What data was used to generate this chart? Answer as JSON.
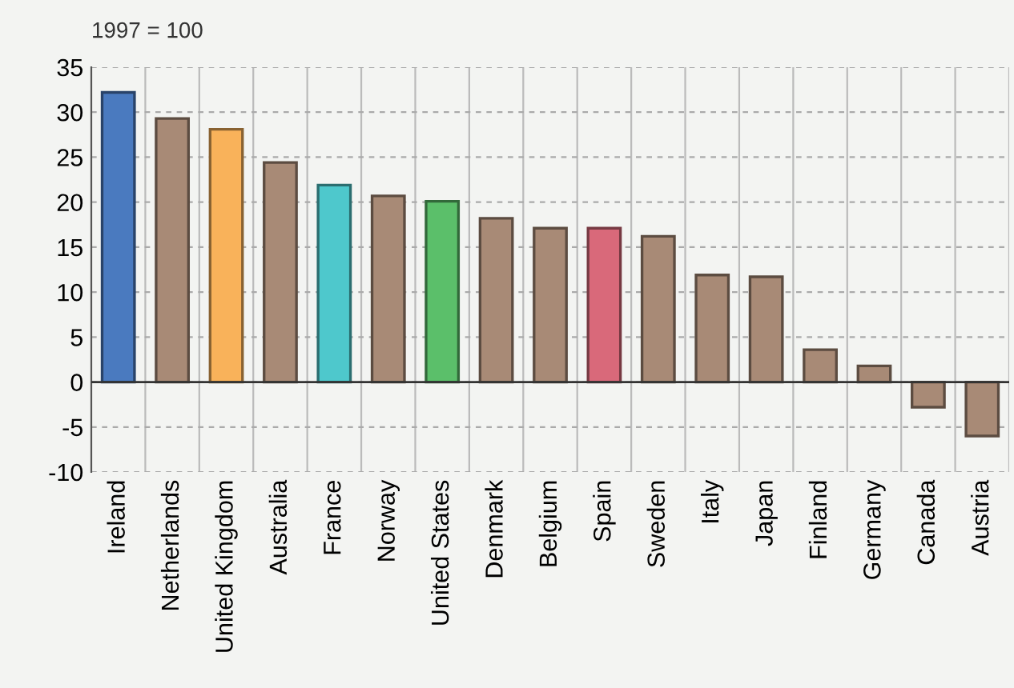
{
  "chart_data": {
    "type": "bar",
    "annotations": [
      "1997 = 100"
    ],
    "categories": [
      "Ireland",
      "Netherlands",
      "United Kingdom",
      "Australia",
      "France",
      "Norway",
      "United States",
      "Denmark",
      "Belgium",
      "Spain",
      "Sweden",
      "Italy",
      "Japan",
      "Finland",
      "Germany",
      "Canada",
      "Austria"
    ],
    "values": [
      32.2,
      29.3,
      28.1,
      24.4,
      21.9,
      20.7,
      20.1,
      18.2,
      17.1,
      17.1,
      16.2,
      11.9,
      11.7,
      3.6,
      1.8,
      -2.8,
      -6.0
    ],
    "colors": [
      "#4a7abf",
      "#a88a76",
      "#f9b25a",
      "#a88a76",
      "#4ec8cc",
      "#a88a76",
      "#5bbf6a",
      "#a88a76",
      "#a88a76",
      "#d9697a",
      "#a88a76",
      "#a88a76",
      "#a88a76",
      "#a88a76",
      "#a88a76",
      "#a88a76",
      "#a88a76"
    ],
    "ylim": [
      -10,
      35
    ],
    "yticks": [
      -10,
      -5,
      0,
      5,
      10,
      15,
      20,
      25,
      30,
      35
    ],
    "grid": true
  }
}
